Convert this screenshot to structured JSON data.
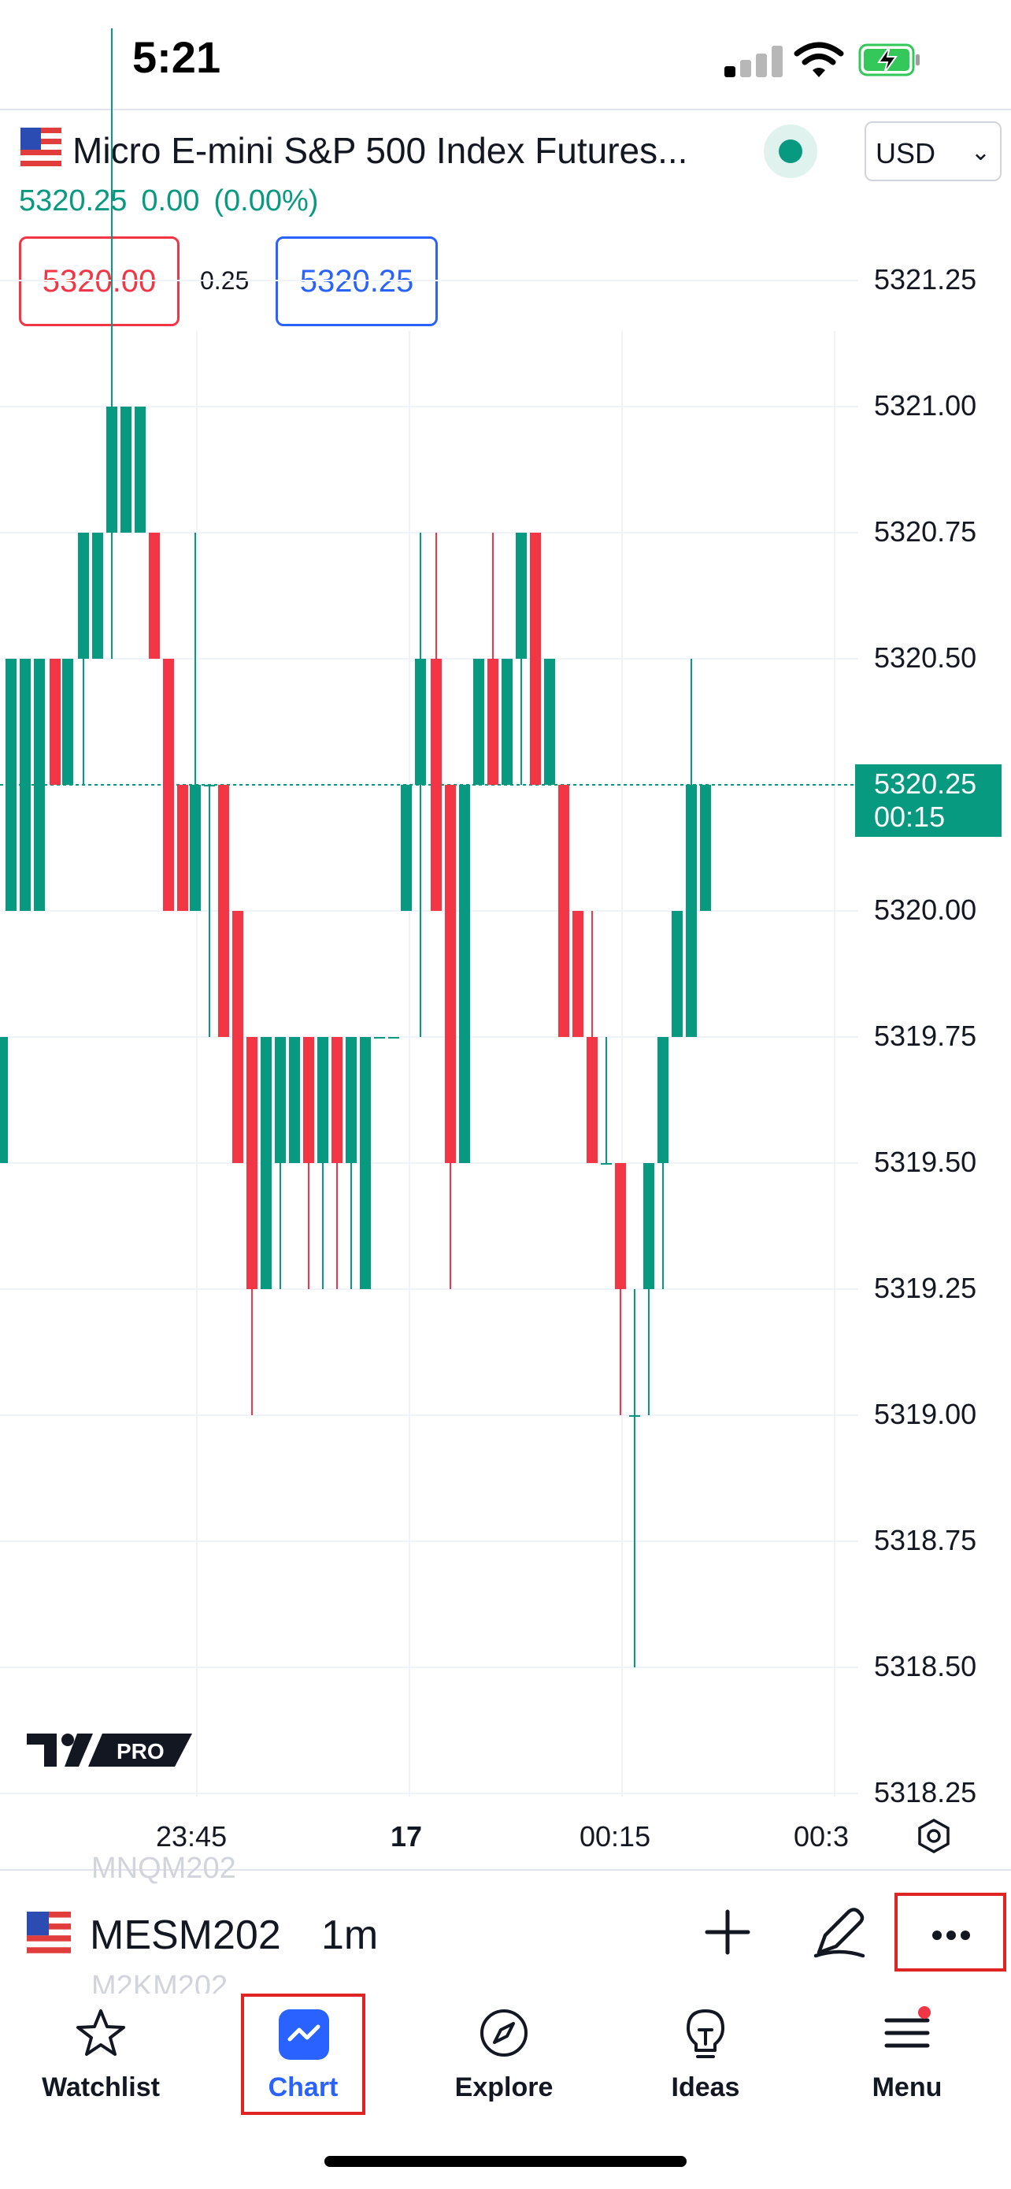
{
  "status_bar": {
    "time": "5:21"
  },
  "header": {
    "title": "Micro E-mini S&P 500 Index Futures...",
    "last_price": "5320.25",
    "change": "0.00",
    "change_pct": "(0.00%)",
    "bid": "5320.00",
    "spread": "0.25",
    "ask": "5320.25",
    "currency": "USD"
  },
  "chart": {
    "price_axis": [
      "5321.25",
      "5321.00",
      "5320.75",
      "5320.50",
      "5320.25",
      "5320.00",
      "5319.75",
      "5319.50",
      "5319.25",
      "5319.00",
      "5318.75",
      "5318.50",
      "5318.25"
    ],
    "current_price_tag": {
      "price": "5320.25",
      "countdown": "00:15"
    },
    "time_axis": [
      "23:45",
      "17",
      "00:15",
      "00:3"
    ],
    "logo_text": "PRO"
  },
  "symbol_bar": {
    "symbol": "MESM202",
    "interval": "1m",
    "ghost_above": "MNQM202",
    "ghost_below": "M2KM202"
  },
  "bottom_nav": {
    "items": [
      {
        "label": "Watchlist"
      },
      {
        "label": "Chart"
      },
      {
        "label": "Explore"
      },
      {
        "label": "Ideas"
      },
      {
        "label": "Menu"
      }
    ]
  },
  "colors": {
    "up": "#089981",
    "down": "#f23645",
    "accent": "#2962ff",
    "highlight_box": "#e02424"
  }
}
